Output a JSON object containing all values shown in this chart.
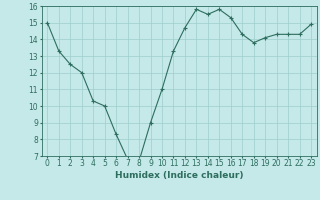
{
  "x": [
    0,
    1,
    2,
    3,
    4,
    5,
    6,
    7,
    8,
    9,
    10,
    11,
    12,
    13,
    14,
    15,
    16,
    17,
    18,
    19,
    20,
    21,
    22,
    23
  ],
  "y": [
    15.0,
    13.3,
    12.5,
    12.0,
    10.3,
    10.0,
    8.3,
    6.8,
    6.7,
    9.0,
    11.0,
    13.3,
    14.7,
    15.8,
    15.5,
    15.8,
    15.3,
    14.3,
    13.8,
    14.1,
    14.3,
    14.3,
    14.3,
    14.9
  ],
  "line_color": "#2d6e5e",
  "marker": "+",
  "marker_size": 3,
  "bg_color": "#c5e8e8",
  "grid_color": "#9dcece",
  "xlabel": "Humidex (Indice chaleur)",
  "xlabel_fontsize": 6.5,
  "tick_fontsize": 5.5,
  "ylim": [
    7,
    16
  ],
  "yticks": [
    7,
    8,
    9,
    10,
    11,
    12,
    13,
    14,
    15,
    16
  ],
  "xticks": [
    0,
    1,
    2,
    3,
    4,
    5,
    6,
    7,
    8,
    9,
    10,
    11,
    12,
    13,
    14,
    15,
    16,
    17,
    18,
    19,
    20,
    21,
    22,
    23
  ],
  "xtick_labels": [
    "0",
    "1",
    "2",
    "3",
    "4",
    "5",
    "6",
    "7",
    "8",
    "9",
    "10",
    "11",
    "12",
    "13",
    "14",
    "15",
    "16",
    "17",
    "18",
    "19",
    "20",
    "21",
    "22",
    "23"
  ]
}
